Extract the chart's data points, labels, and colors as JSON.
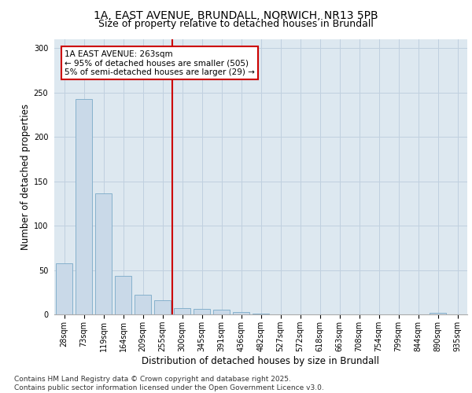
{
  "title_line1": "1A, EAST AVENUE, BRUNDALL, NORWICH, NR13 5PB",
  "title_line2": "Size of property relative to detached houses in Brundall",
  "xlabel": "Distribution of detached houses by size in Brundall",
  "ylabel": "Number of detached properties",
  "categories": [
    "28sqm",
    "73sqm",
    "119sqm",
    "164sqm",
    "209sqm",
    "255sqm",
    "300sqm",
    "345sqm",
    "391sqm",
    "436sqm",
    "482sqm",
    "527sqm",
    "572sqm",
    "618sqm",
    "663sqm",
    "708sqm",
    "754sqm",
    "799sqm",
    "844sqm",
    "890sqm",
    "935sqm"
  ],
  "values": [
    58,
    243,
    136,
    43,
    22,
    16,
    7,
    6,
    5,
    3,
    1,
    0,
    0,
    0,
    0,
    0,
    0,
    0,
    0,
    2,
    0
  ],
  "bar_color": "#c9d9e8",
  "bar_edge_color": "#7aaac8",
  "grid_color": "#c8d8e8",
  "background_color": "#dde8f0",
  "vline_x": 5.5,
  "vline_color": "#cc0000",
  "annotation_text": "1A EAST AVENUE: 263sqm\n← 95% of detached houses are smaller (505)\n5% of semi-detached houses are larger (29) →",
  "annotation_box_color": "#ffffff",
  "annotation_box_edgecolor": "#cc0000",
  "ylim": [
    0,
    310
  ],
  "yticks": [
    0,
    50,
    100,
    150,
    200,
    250,
    300
  ],
  "footer_text": "Contains HM Land Registry data © Crown copyright and database right 2025.\nContains public sector information licensed under the Open Government Licence v3.0.",
  "title_fontsize": 10,
  "subtitle_fontsize": 9,
  "axis_label_fontsize": 8.5,
  "tick_fontsize": 7,
  "footer_fontsize": 6.5,
  "annotation_fontsize": 7.5
}
